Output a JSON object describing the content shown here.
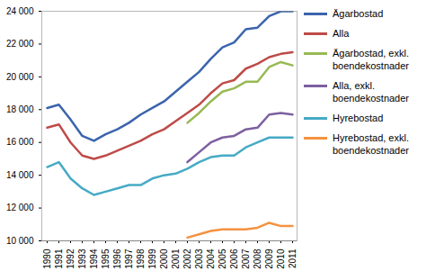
{
  "chart_data": {
    "type": "line",
    "categories": [
      "1990",
      "1991",
      "1992",
      "1993",
      "1994",
      "1995",
      "1996",
      "1997",
      "1998",
      "1999",
      "2000",
      "2001",
      "2002",
      "2003",
      "2004",
      "2005",
      "2006",
      "2007",
      "2008",
      "2009",
      "2010",
      "2011"
    ],
    "series": [
      {
        "name": "Ägarbostad",
        "color": "#3B64AD",
        "values": [
          18100,
          18300,
          17400,
          16400,
          16100,
          16500,
          16800,
          17200,
          17700,
          18100,
          18500,
          19100,
          19700,
          20300,
          21100,
          21800,
          22100,
          22900,
          23000,
          23700,
          24000,
          24000
        ]
      },
      {
        "name": "Alla",
        "color": "#BE4B48",
        "values": [
          16900,
          17100,
          16000,
          15200,
          15000,
          15200,
          15500,
          15800,
          16100,
          16500,
          16800,
          17300,
          17800,
          18300,
          19000,
          19600,
          19800,
          20500,
          20800,
          21200,
          21400,
          21500
        ]
      },
      {
        "name": "Ägarbostad, exkl. boendekostnader",
        "color": "#98B954",
        "values": [
          null,
          null,
          null,
          null,
          null,
          null,
          null,
          null,
          null,
          null,
          null,
          null,
          17200,
          17800,
          18500,
          19100,
          19300,
          19700,
          19700,
          20600,
          20900,
          20700
        ]
      },
      {
        "name": "Alla, exkl. boendekostnader",
        "color": "#7D60A0",
        "values": [
          null,
          null,
          null,
          null,
          null,
          null,
          null,
          null,
          null,
          null,
          null,
          null,
          14800,
          15400,
          16000,
          16300,
          16400,
          16800,
          16900,
          17700,
          17800,
          17700
        ]
      },
      {
        "name": "Hyrebostad",
        "color": "#46AAC5",
        "values": [
          14500,
          14800,
          13800,
          13200,
          12800,
          13000,
          13200,
          13400,
          13400,
          13800,
          14000,
          14100,
          14400,
          14800,
          15100,
          15200,
          15200,
          15700,
          16000,
          16300,
          16300,
          16300
        ]
      },
      {
        "name": "Hyrebostad, exkl. boendekostnader",
        "color": "#F59240",
        "values": [
          null,
          null,
          null,
          null,
          null,
          null,
          null,
          null,
          null,
          null,
          null,
          null,
          10200,
          10400,
          10600,
          10700,
          10700,
          10700,
          10800,
          11100,
          10900,
          10900
        ]
      }
    ],
    "ylim": [
      10000,
      24000
    ],
    "yticks": [
      {
        "value": 10000,
        "label": "10 000"
      },
      {
        "value": 12000,
        "label": "12 000"
      },
      {
        "value": 14000,
        "label": "14 000"
      },
      {
        "value": 16000,
        "label": "16 000"
      },
      {
        "value": 18000,
        "label": "18 000"
      },
      {
        "value": 20000,
        "label": "20 000"
      },
      {
        "value": 22000,
        "label": "22 000"
      },
      {
        "value": 24000,
        "label": "24 000"
      }
    ],
    "grid": false,
    "legend": "right"
  }
}
